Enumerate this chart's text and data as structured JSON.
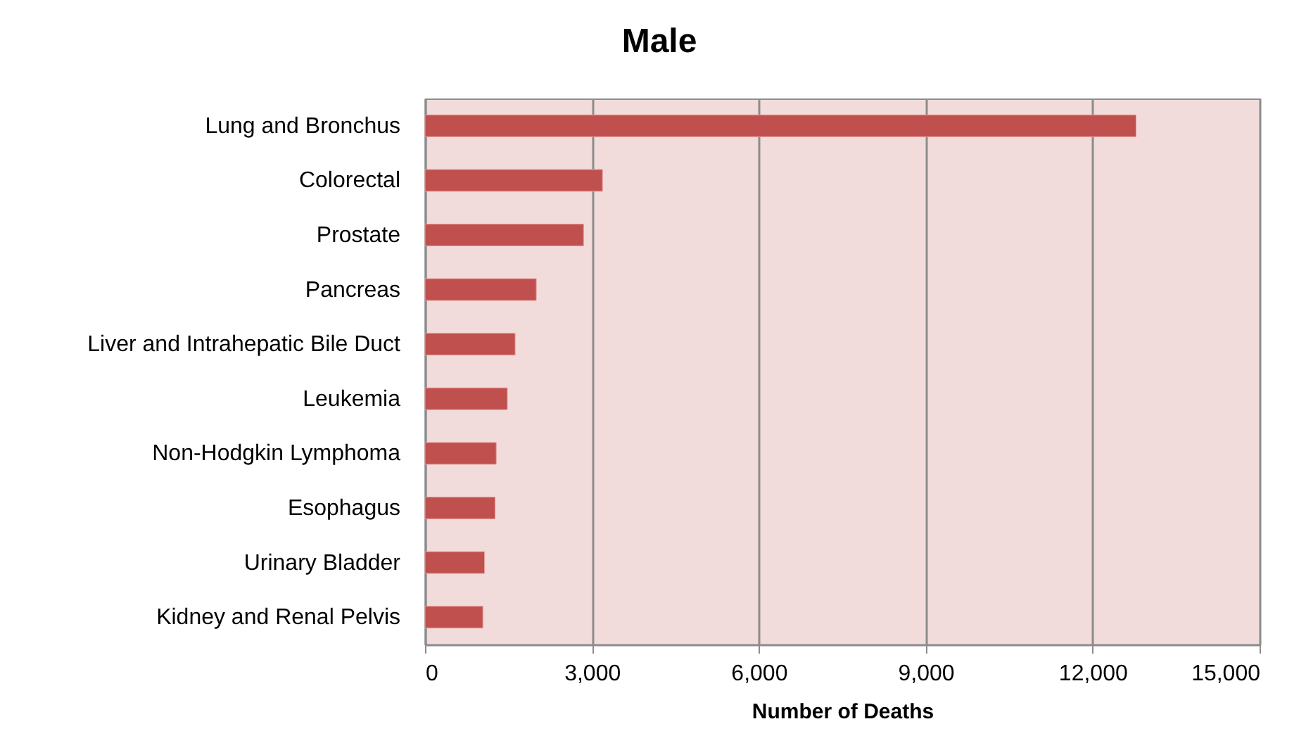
{
  "chart_data": {
    "type": "bar",
    "orientation": "horizontal",
    "title": "Male",
    "xlabel": "Number of Deaths",
    "categories": [
      "Lung and Bronchus",
      "Colorectal",
      "Prostate",
      "Pancreas",
      "Liver and Intrahepatic Bile Duct",
      "Leukemia",
      "Non-Hodgkin Lymphoma",
      "Esophagus",
      "Urinary Bladder",
      "Kidney and Renal Pelvis"
    ],
    "values": [
      12780,
      3190,
      2850,
      2000,
      1620,
      1480,
      1280,
      1260,
      1070,
      1040
    ],
    "color": "#c0504d",
    "xlim": [
      0,
      15000
    ],
    "xticks": [
      {
        "value": 0,
        "label": "0"
      },
      {
        "value": 3000,
        "label": "3,000"
      },
      {
        "value": 6000,
        "label": "6,000"
      },
      {
        "value": 9000,
        "label": "9,000"
      },
      {
        "value": 12000,
        "label": "12,000"
      },
      {
        "value": 15000,
        "label": "15,000"
      }
    ],
    "grid": "x"
  }
}
